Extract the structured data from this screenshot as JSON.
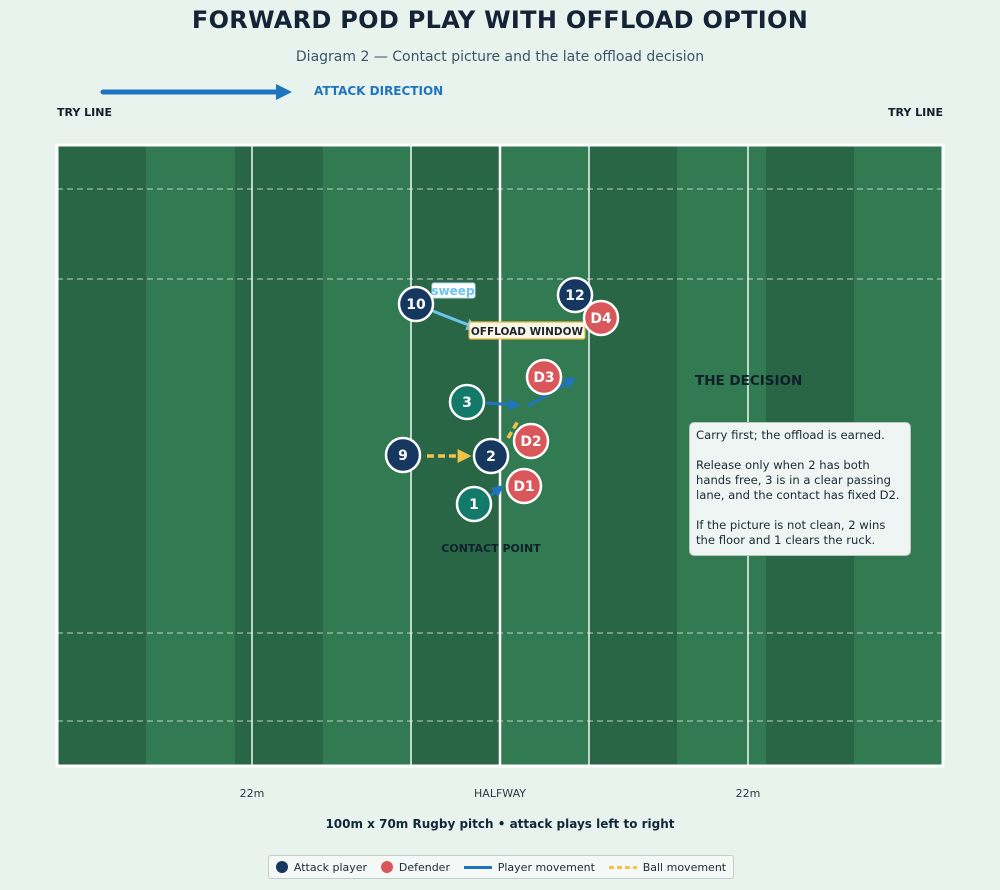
{
  "title": "FORWARD POD PLAY WITH OFFLOAD OPTION",
  "subtitle": "Diagram 2 — Contact picture and the late offload decision",
  "attack_direction_label": "ATTACK DIRECTION",
  "try_line_left": "TRY LINE",
  "try_line_right": "TRY LINE",
  "pitch_labels": {
    "left_22": "22m",
    "halfway": "HALFWAY",
    "right_22": "22m"
  },
  "caption": "100m x 70m Rugby pitch • attack plays left to right",
  "annotations": {
    "sweep": "sweep",
    "offload_window": "OFFLOAD WINDOW",
    "contact_point": "CONTACT POINT",
    "decision_title": "THE DECISION"
  },
  "note": {
    "p1": "Carry first; the offload is earned.",
    "p2": "Release only when 2 has both hands free, 3 is in a clear passing lane, and the contact has fixed D2.",
    "p3": "If the picture is not clean, 2 wins the floor and 1 clears the ruck."
  },
  "players": [
    {
      "label": "10",
      "team": "attack"
    },
    {
      "label": "12",
      "team": "attack"
    },
    {
      "label": "D4",
      "team": "defender"
    },
    {
      "label": "D3",
      "team": "defender"
    },
    {
      "label": "3",
      "team": "support"
    },
    {
      "label": "D2",
      "team": "defender"
    },
    {
      "label": "9",
      "team": "attack"
    },
    {
      "label": "2",
      "team": "attack"
    },
    {
      "label": "D1",
      "team": "defender"
    },
    {
      "label": "1",
      "team": "support"
    }
  ],
  "legend": {
    "attack": "Attack player",
    "defender": "Defender",
    "player_movement": "Player movement",
    "ball_movement": "Ball movement"
  },
  "colors": {
    "attack": "#163760",
    "support": "#137a6a",
    "defender": "#d9565a",
    "player_movement": "#1f74c0",
    "ball_movement": "#f2c24a",
    "sweep": "#6ec4ee",
    "pitch_dark": "#286645",
    "pitch_light": "#327a52"
  }
}
